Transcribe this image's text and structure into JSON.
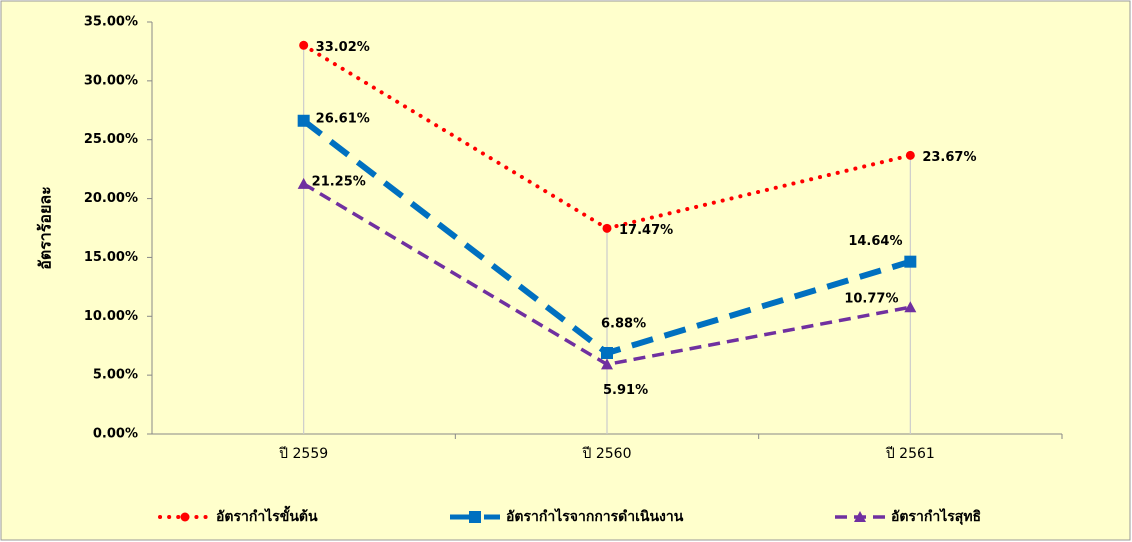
{
  "chart_data": {
    "type": "line",
    "ylabel": "อัตราร้อยละ",
    "categories": [
      "ปี 2559",
      "ปี 2560",
      "ปี 2561"
    ],
    "ylim": [
      0,
      35
    ],
    "yticks": [
      {
        "value": 0,
        "label": "0.00%"
      },
      {
        "value": 5,
        "label": "5.00%"
      },
      {
        "value": 10,
        "label": "10.00%"
      },
      {
        "value": 15,
        "label": "15.00%"
      },
      {
        "value": 20,
        "label": "20.00%"
      },
      {
        "value": 25,
        "label": "25.00%"
      },
      {
        "value": 30,
        "label": "30.00%"
      },
      {
        "value": 35,
        "label": "35.00%"
      }
    ],
    "legend": "bottom",
    "drop_lines": true,
    "series": [
      {
        "name": "อัตรากำไรขั้นต้น",
        "color": "#ff0000",
        "line_style": "dotted",
        "marker": "circle",
        "values": [
          33.02,
          17.47,
          23.67
        ],
        "value_labels": [
          "33.02%",
          "17.47%",
          "23.67%"
        ]
      },
      {
        "name": "อัตรากำไรจากการดำเนินงาน",
        "color": "#0070c0",
        "line_style": "dashed",
        "marker": "square",
        "values": [
          26.61,
          6.88,
          14.64
        ],
        "value_labels": [
          "26.61%",
          "6.88%",
          "14.64%"
        ]
      },
      {
        "name": "อัตรากำไรสุทธิ",
        "color": "#7030a0",
        "line_style": "dashed-thin",
        "marker": "triangle",
        "values": [
          21.25,
          5.91,
          10.77
        ],
        "value_labels": [
          "21.25%",
          "5.91%",
          "10.77%"
        ]
      }
    ]
  }
}
